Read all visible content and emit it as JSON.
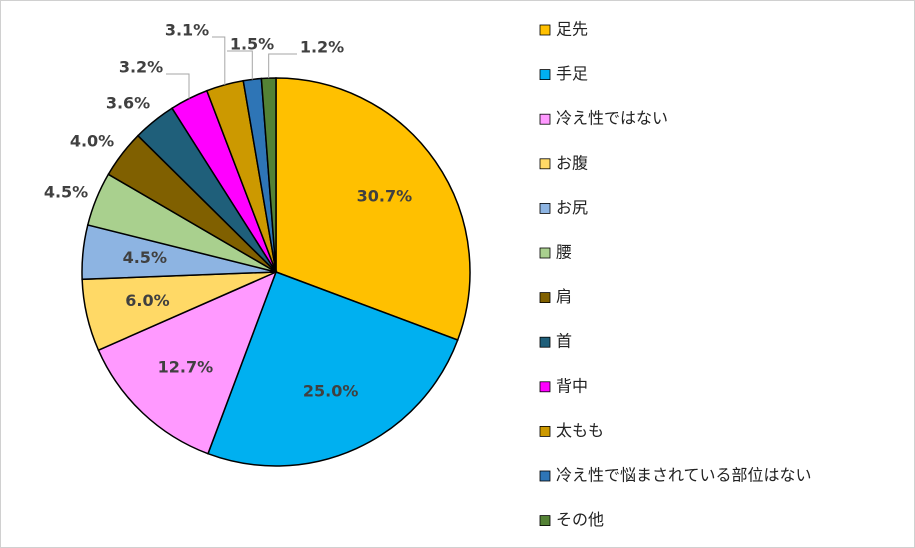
{
  "chart_data": {
    "type": "pie",
    "categories": [
      "足先",
      "手足",
      "冷え性ではない",
      "お腹",
      "お尻",
      "腰",
      "肩",
      "首",
      "背中",
      "太もも",
      "冷え性で悩まされている部位はない",
      "その他"
    ],
    "values": [
      30.7,
      25.0,
      12.7,
      6.0,
      4.5,
      4.5,
      4.0,
      3.6,
      3.2,
      3.1,
      1.5,
      1.2
    ],
    "value_labels": [
      "30.7%",
      "25.0%",
      "12.7%",
      "6.0%",
      "4.5%",
      "4.5%",
      "4.0%",
      "3.6%",
      "3.2%",
      "3.1%",
      "1.5%",
      "1.2%"
    ],
    "colors": [
      "#ffc000",
      "#00b0f0",
      "#ff99ff",
      "#ffd966",
      "#8db4e2",
      "#a9d08e",
      "#806000",
      "#1f5f7a",
      "#ff00ff",
      "#cc9900",
      "#2e75b6",
      "#548235"
    ],
    "legend": "right"
  }
}
